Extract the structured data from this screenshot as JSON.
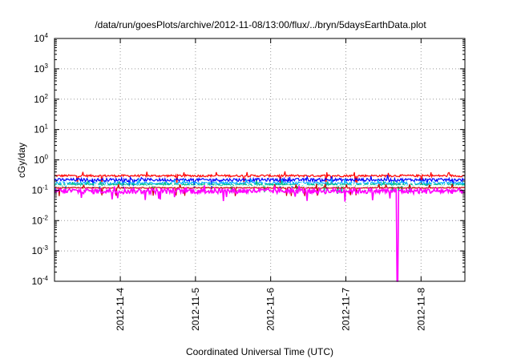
{
  "chart_data": {
    "type": "line",
    "title": "/data/run/goesPlots/archive/2012-11-08/13:00/flux/../bryn/5daysEarthData.plot",
    "xlabel": "Coordinated Universal Time (UTC)",
    "ylabel": "cGy/day",
    "yscale": "log",
    "ylim": [
      0.0001,
      10000
    ],
    "y_ticks": [
      {
        "base": "10",
        "exp": "-4"
      },
      {
        "base": "10",
        "exp": "-3"
      },
      {
        "base": "10",
        "exp": "-2"
      },
      {
        "base": "10",
        "exp": "-1"
      },
      {
        "base": "10",
        "exp": "0"
      },
      {
        "base": "10",
        "exp": "1"
      },
      {
        "base": "10",
        "exp": "2"
      },
      {
        "base": "10",
        "exp": "3"
      },
      {
        "base": "10",
        "exp": "4"
      }
    ],
    "xlim": [
      "2012-11-03T03:00",
      "2012-11-08T14:00"
    ],
    "x_ticks": [
      "2012-11-4",
      "2012-11-5",
      "2012-11-6",
      "2012-11-7",
      "2012-11-8"
    ],
    "grid": true,
    "series": [
      {
        "color": "#ff0000",
        "level": 0.3,
        "spread": 0.08
      },
      {
        "color": "#0000ff",
        "level": 0.22,
        "spread": 0.12
      },
      {
        "color": "#00b0ff",
        "level": 0.17,
        "spread": 0.1
      },
      {
        "color": "#00c080",
        "level": 0.15,
        "spread": 0.08
      },
      {
        "color": "#ffffff",
        "level": 0.14,
        "spread": 0.05
      },
      {
        "color": "#cc0000",
        "level": 0.12,
        "spread": 0.04
      },
      {
        "color": "#ff00ff",
        "level": 0.095,
        "spread": 0.2
      }
    ],
    "annotations": [
      {
        "series_color": "#ff00ff",
        "x": "2012-11-07T16:30",
        "y": 0.0001,
        "note": "dropout"
      }
    ]
  }
}
